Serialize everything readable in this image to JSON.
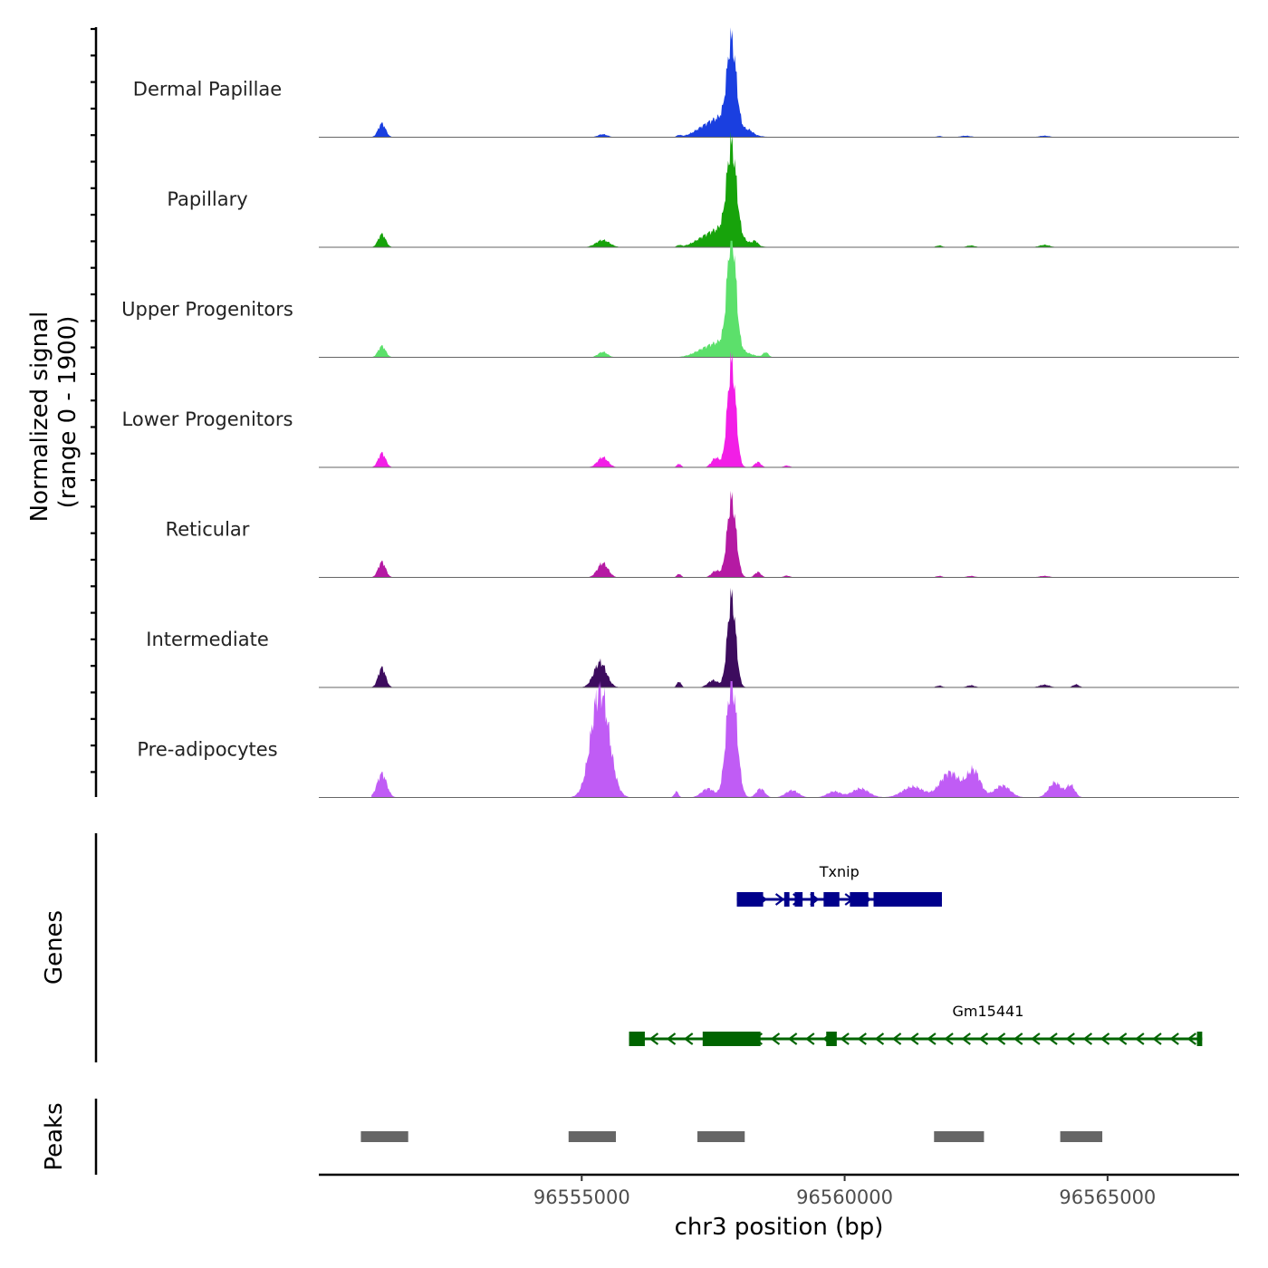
{
  "chart_data": {
    "type": "area",
    "title": "",
    "ylabel_line1": "Normalized signal",
    "ylabel_line2": "(range 0 - 1900)",
    "xlabel": "chr3 position (bp)",
    "xlim": [
      96550000,
      96567500
    ],
    "ylim": [
      0,
      1900
    ],
    "xticks": [
      {
        "value": 96555000,
        "label": "96555000"
      },
      {
        "value": 96560000,
        "label": "96560000"
      },
      {
        "value": 96565000,
        "label": "96565000"
      }
    ],
    "tracks": [
      {
        "name": "Dermal Papillae",
        "color": "#1a3fe0",
        "peaks": [
          [
            96551200,
            230,
            70
          ],
          [
            96555400,
            50,
            90
          ],
          [
            96556850,
            30,
            40
          ],
          [
            96557300,
            60,
            200
          ],
          [
            96557700,
            320,
            300
          ],
          [
            96557850,
            1350,
            85
          ],
          [
            96558200,
            40,
            60
          ],
          [
            96561800,
            20,
            50
          ],
          [
            96562300,
            25,
            100
          ],
          [
            96563800,
            25,
            100
          ]
        ]
      },
      {
        "name": "Papillary",
        "color": "#17a30b",
        "peaks": [
          [
            96551200,
            220,
            70
          ],
          [
            96555400,
            120,
            130
          ],
          [
            96556850,
            30,
            40
          ],
          [
            96557300,
            60,
            200
          ],
          [
            96557700,
            300,
            300
          ],
          [
            96557850,
            1450,
            90
          ],
          [
            96558300,
            70,
            50
          ],
          [
            96561800,
            30,
            60
          ],
          [
            96562400,
            30,
            80
          ],
          [
            96563800,
            40,
            100
          ]
        ]
      },
      {
        "name": "Upper Progenitors",
        "color": "#5ce06b",
        "peaks": [
          [
            96551200,
            190,
            70
          ],
          [
            96555400,
            90,
            90
          ],
          [
            96557300,
            50,
            200
          ],
          [
            96557700,
            250,
            300
          ],
          [
            96557850,
            1900,
            80
          ],
          [
            96558500,
            80,
            50
          ]
        ]
      },
      {
        "name": "Lower Progenitors",
        "color": "#f21ee6",
        "peaks": [
          [
            96551200,
            240,
            70
          ],
          [
            96555400,
            170,
            100
          ],
          [
            96556850,
            60,
            40
          ],
          [
            96557550,
            160,
            80
          ],
          [
            96557850,
            1750,
            80
          ],
          [
            96558350,
            90,
            60
          ],
          [
            96558900,
            30,
            60
          ]
        ]
      },
      {
        "name": "Reticular",
        "color": "#b51aa3",
        "peaks": [
          [
            96551200,
            260,
            70
          ],
          [
            96555400,
            240,
            100
          ],
          [
            96556850,
            60,
            40
          ],
          [
            96557550,
            110,
            80
          ],
          [
            96557850,
            1300,
            85
          ],
          [
            96558350,
            90,
            60
          ],
          [
            96558900,
            30,
            60
          ],
          [
            96561800,
            25,
            60
          ],
          [
            96562400,
            25,
            80
          ],
          [
            96563800,
            25,
            100
          ]
        ]
      },
      {
        "name": "Intermediate",
        "color": "#3d0c5e",
        "peaks": [
          [
            96551200,
            330,
            70
          ],
          [
            96555350,
            420,
            120
          ],
          [
            96556850,
            100,
            40
          ],
          [
            96557500,
            120,
            100
          ],
          [
            96557850,
            1500,
            80
          ],
          [
            96561800,
            30,
            60
          ],
          [
            96562400,
            35,
            80
          ],
          [
            96563800,
            45,
            100
          ],
          [
            96564400,
            50,
            60
          ]
        ]
      },
      {
        "name": "Pre-adipocytes",
        "color": "#c05cf5",
        "peaks": [
          [
            96551200,
            400,
            90
          ],
          [
            96555350,
            1800,
            170
          ],
          [
            96556800,
            100,
            40
          ],
          [
            96557400,
            150,
            120
          ],
          [
            96557850,
            1950,
            100
          ],
          [
            96558400,
            150,
            80
          ],
          [
            96559000,
            120,
            120
          ],
          [
            96559800,
            100,
            130
          ],
          [
            96560300,
            150,
            160
          ],
          [
            96561300,
            180,
            200
          ],
          [
            96562000,
            420,
            180
          ],
          [
            96562450,
            450,
            130
          ],
          [
            96563000,
            200,
            150
          ],
          [
            96564000,
            250,
            120
          ],
          [
            96564300,
            200,
            80
          ]
        ]
      }
    ],
    "genes": [
      {
        "name": "Txnip",
        "color": "#00008b",
        "strand": "+",
        "start": 96557950,
        "end": 96561850,
        "exons": [
          [
            96557950,
            96558450
          ],
          [
            96558850,
            96558950
          ],
          [
            96559050,
            96559200
          ],
          [
            96559350,
            96559400
          ],
          [
            96559600,
            96559900
          ],
          [
            96560100,
            96560450
          ],
          [
            96560550,
            96561850
          ]
        ]
      },
      {
        "name": "Gm15441",
        "color": "#006400",
        "strand": "-",
        "start": 96555900,
        "end": 96566800,
        "exons": [
          [
            96555900,
            96556200
          ],
          [
            96557300,
            96558400
          ],
          [
            96559650,
            96559850
          ],
          [
            96566700,
            96566800
          ]
        ]
      }
    ],
    "peak_regions": [
      [
        96550800,
        96551700
      ],
      [
        96554750,
        96555650
      ],
      [
        96557200,
        96558100
      ],
      [
        96561700,
        96562650
      ],
      [
        96564100,
        96564900
      ]
    ],
    "panels": {
      "genes_label": "Genes",
      "peaks_label": "Peaks"
    }
  },
  "colors": {
    "axis": "#000000",
    "peak_block": "#666666",
    "baseline": "#666666"
  }
}
